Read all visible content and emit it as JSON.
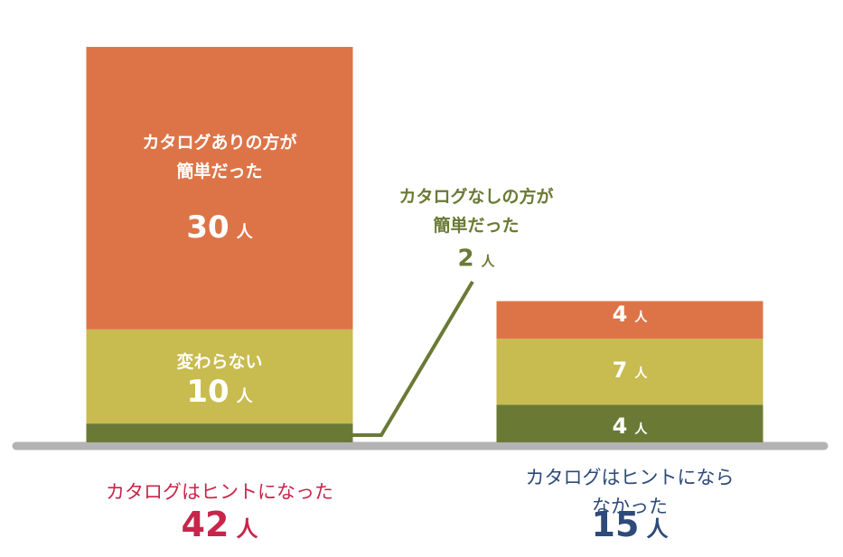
{
  "chart_data": {
    "type": "stacked_bar",
    "categories": [
      "カタログはヒントになった",
      "カタログはヒントにならなかった"
    ],
    "category_colors": [
      "#c8254a",
      "#2d4a7a"
    ],
    "unit": "人",
    "totals": [
      42,
      15
    ],
    "series": [
      {
        "name": "カタログなしの方が\n簡単だった",
        "color": "#6a7a35",
        "values": [
          2,
          4
        ]
      },
      {
        "name": "変わらない",
        "color": "#c8bb4f",
        "values": [
          10,
          7
        ]
      },
      {
        "name": "カタログありの方が\n簡単だった",
        "color": "#dd7447",
        "values": [
          30,
          4
        ]
      }
    ]
  }
}
